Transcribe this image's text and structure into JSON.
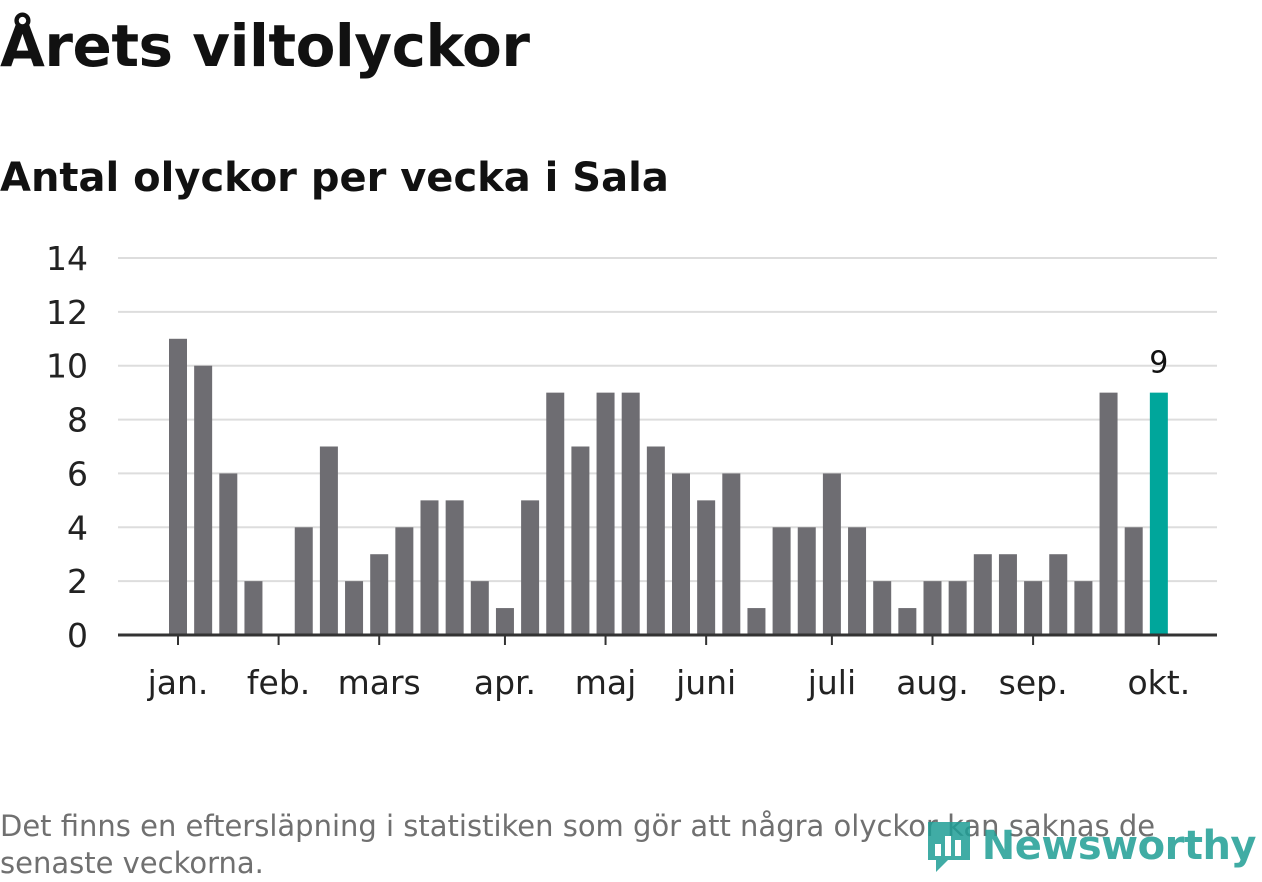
{
  "header": {
    "title": "Årets viltolyckor",
    "subtitle": "Antal olyckor per vecka i Sala"
  },
  "footer": {
    "note": "Det finns en eftersläpning i statistiken som gör att några olyckor kan saknas de senaste veckorna.",
    "brand": "Newsworthy",
    "brand_color": "#1f9e95"
  },
  "chart_data": {
    "type": "bar",
    "title": "Antal olyckor per vecka i Sala",
    "xlabel": "",
    "ylabel": "",
    "ylim": [
      0,
      14
    ],
    "yticks": [
      0,
      2,
      4,
      6,
      8,
      10,
      12,
      14
    ],
    "grid": true,
    "legend": "none",
    "bar_color": "#6e6d72",
    "highlight_color": "#00a69b",
    "values": [
      11,
      10,
      6,
      2,
      0,
      4,
      7,
      2,
      3,
      4,
      5,
      5,
      2,
      1,
      5,
      9,
      7,
      9,
      9,
      7,
      6,
      5,
      6,
      1,
      4,
      4,
      6,
      4,
      2,
      1,
      2,
      2,
      3,
      3,
      2,
      3,
      2,
      9,
      4,
      9
    ],
    "highlight_index": 39,
    "highlight_label": "9",
    "month_labels": [
      {
        "label": "jan.",
        "bar_index": 0
      },
      {
        "label": "feb.",
        "bar_index": 4
      },
      {
        "label": "mars",
        "bar_index": 8
      },
      {
        "label": "apr.",
        "bar_index": 13
      },
      {
        "label": "maj",
        "bar_index": 17
      },
      {
        "label": "juni",
        "bar_index": 21
      },
      {
        "label": "juli",
        "bar_index": 26
      },
      {
        "label": "aug.",
        "bar_index": 30
      },
      {
        "label": "sep.",
        "bar_index": 34
      },
      {
        "label": "okt.",
        "bar_index": 39
      }
    ]
  }
}
